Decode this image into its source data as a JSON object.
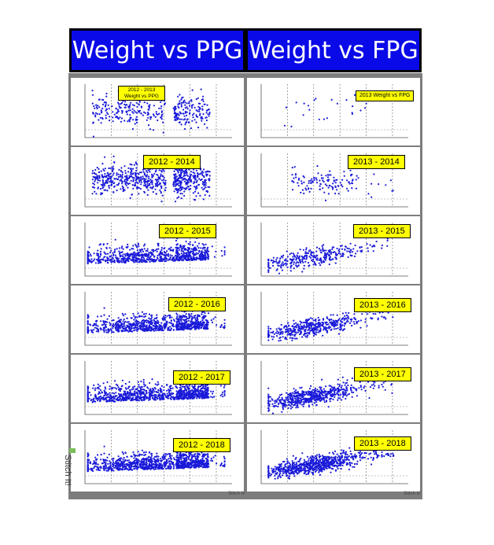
{
  "headers": {
    "left": "Weight vs PPG",
    "right": "Weight vs FPG"
  },
  "watermarks": {
    "vertical": "Stitch It!",
    "small_left": "Stitch It!",
    "small_right": "Stitch It!"
  },
  "colors": {
    "header_bg": "#0a0ae8",
    "label_bg": "#ffff00",
    "point": "#1a1ad9",
    "column_frame": "#7d7d7d"
  },
  "chart_data": [
    {
      "type": "scatter",
      "column": "Weight vs PPG",
      "title": "2012 - 2013 Weight vs PPG",
      "n_points": 360,
      "x_range": [
        172,
        192
      ],
      "y_range": [
        85,
        195
      ],
      "spread": "even",
      "series": [
        {
          "name": "PPG",
          "density": "medium"
        }
      ]
    },
    {
      "type": "scatter",
      "column": "Weight vs PPG",
      "title": "2012 - 2014",
      "n_points": 700,
      "x_range": [
        172,
        192
      ],
      "y_range": [
        85,
        195
      ],
      "spread": "even",
      "series": [
        {
          "name": "PPG",
          "density": "high"
        }
      ]
    },
    {
      "type": "scatter",
      "column": "Weight vs PPG",
      "title": "2012 - 2015",
      "n_points": 800,
      "x_range": [
        167,
        193
      ],
      "y_range": [
        85,
        205
      ],
      "spread": "low",
      "series": [
        {
          "name": "PPG",
          "density": "high"
        }
      ]
    },
    {
      "type": "scatter",
      "column": "Weight vs PPG",
      "title": "2012 - 2016",
      "n_points": 900,
      "x_range": [
        167,
        193
      ],
      "y_range": [
        85,
        205
      ],
      "spread": "low",
      "series": [
        {
          "name": "PPG",
          "density": "high"
        }
      ]
    },
    {
      "type": "scatter",
      "column": "Weight vs PPG",
      "title": "2012 - 2017",
      "n_points": 1000,
      "x_range": [
        166,
        194
      ],
      "y_range": [
        85,
        205
      ],
      "spread": "low",
      "series": [
        {
          "name": "PPG",
          "density": "high"
        }
      ]
    },
    {
      "type": "scatter",
      "column": "Weight vs PPG",
      "title": "2012 - 2018",
      "n_points": 1100,
      "x_range": [
        166,
        194
      ],
      "y_range": [
        85,
        205
      ],
      "spread": "low",
      "series": [
        {
          "name": "PPG",
          "density": "high"
        }
      ]
    },
    {
      "type": "scatter",
      "column": "Weight vs FPG",
      "title": "2013 Weight vs FPG",
      "n_points": 25,
      "x_range": [
        175,
        195
      ],
      "y_range": [
        80,
        180
      ],
      "spread": "sparse",
      "series": [
        {
          "name": "FPG",
          "density": "low"
        }
      ]
    },
    {
      "type": "scatter",
      "column": "Weight vs FPG",
      "title": "2013 - 2014",
      "n_points": 130,
      "x_range": [
        173,
        195
      ],
      "y_range": [
        80,
        180
      ],
      "spread": "cluster",
      "series": [
        {
          "name": "FPG",
          "density": "medium"
        }
      ]
    },
    {
      "type": "scatter",
      "column": "Weight vs FPG",
      "title": "2013 - 2015",
      "n_points": 320,
      "x_range": [
        168,
        195
      ],
      "y_range": [
        80,
        190
      ],
      "spread": "rising",
      "series": [
        {
          "name": "FPG",
          "density": "medium"
        }
      ]
    },
    {
      "type": "scatter",
      "column": "Weight vs FPG",
      "title": "2013 - 2016",
      "n_points": 480,
      "x_range": [
        168,
        195
      ],
      "y_range": [
        80,
        190
      ],
      "spread": "rising",
      "series": [
        {
          "name": "FPG",
          "density": "high"
        }
      ]
    },
    {
      "type": "scatter",
      "column": "Weight vs FPG",
      "title": "2013 - 2017",
      "n_points": 620,
      "x_range": [
        168,
        195
      ],
      "y_range": [
        80,
        190
      ],
      "spread": "rising",
      "series": [
        {
          "name": "FPG",
          "density": "high"
        }
      ]
    },
    {
      "type": "scatter",
      "column": "Weight vs FPG",
      "title": "2013 - 2018",
      "n_points": 760,
      "x_range": [
        168,
        195
      ],
      "y_range": [
        80,
        190
      ],
      "spread": "rising",
      "series": [
        {
          "name": "FPG",
          "density": "high"
        }
      ]
    }
  ]
}
